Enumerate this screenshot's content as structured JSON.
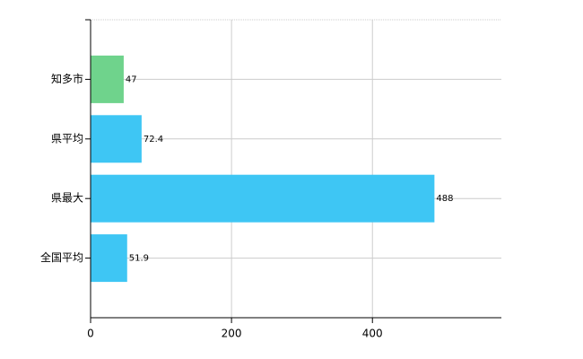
{
  "chart_data": {
    "type": "hbar",
    "categories": [
      "知多市",
      "県平均",
      "県最大",
      "全国平均"
    ],
    "values": [
      47,
      72.4,
      488,
      51.9
    ],
    "colors": [
      "#6fd38c",
      "#3ec6f4",
      "#3ec6f4",
      "#3ec6f4"
    ],
    "xlim": [
      0,
      583
    ],
    "xticks": [
      0,
      200,
      400
    ],
    "grid": true
  }
}
